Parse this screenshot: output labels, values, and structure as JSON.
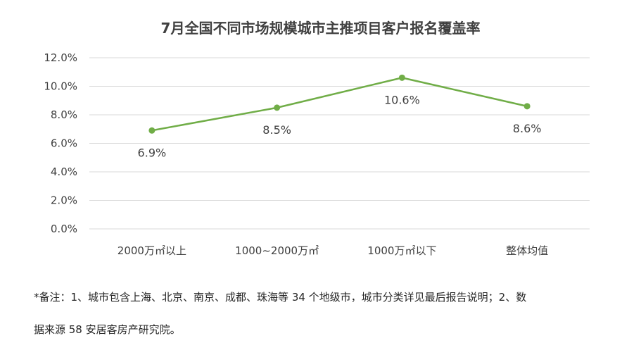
{
  "chart_data": {
    "type": "line",
    "title": "7月全国不同市场规模城市主推项目客户报名覆盖率",
    "categories": [
      "2000万㎡以上",
      "1000~2000万㎡",
      "1000万㎡以下",
      "整体均值"
    ],
    "series": [
      {
        "values": [
          6.9,
          8.5,
          10.6,
          8.6
        ],
        "value_labels": [
          "6.9%",
          "8.5%",
          "10.6%",
          "8.6%"
        ],
        "color": "#70ad47"
      }
    ],
    "y_ticks": [
      "0.0%",
      "2.0%",
      "4.0%",
      "6.0%",
      "8.0%",
      "10.0%",
      "12.0%"
    ],
    "ylim": [
      0,
      12
    ],
    "y_unit": "%",
    "grid": true,
    "legend": "none",
    "gridline_color": "#d9d9d9"
  },
  "footnote": {
    "line1": "*备注：1、城市包含上海、北京、南京、成都、珠海等 34 个地级市，城市分类详见最后报告说明；2、数",
    "line2": "据来源 58 安居客房产研究院。"
  }
}
